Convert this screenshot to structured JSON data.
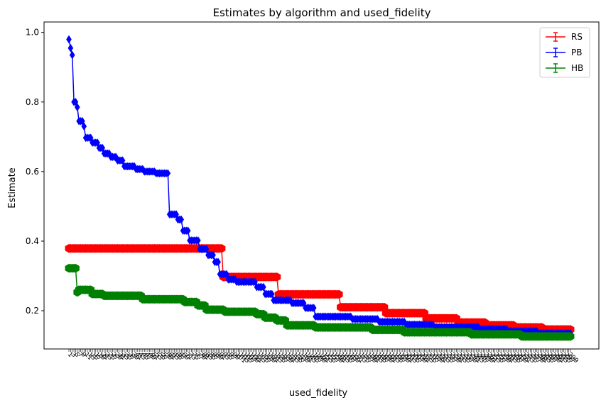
{
  "chart_data": {
    "type": "line",
    "title": "Estimates by algorithm and used_fidelity",
    "xlabel": "used_fidelity",
    "ylabel": "Estimate",
    "ylim": [
      0.09,
      1.03
    ],
    "yticks": [
      0.2,
      0.4,
      0.6,
      0.8,
      1.0
    ],
    "ytick_labels": [
      "0.2",
      "0.4",
      "0.6",
      "0.8",
      "1.0"
    ],
    "x_points": 300,
    "grid": false,
    "legend": "top-right",
    "series": [
      {
        "name": "RS",
        "color": "#ff0000",
        "marker": "hexagon",
        "steps": [
          {
            "start": 0,
            "end": 92,
            "value": 0.379
          },
          {
            "start": 92,
            "end": 125,
            "value": 0.297
          },
          {
            "start": 125,
            "end": 162,
            "value": 0.247
          },
          {
            "start": 162,
            "end": 189,
            "value": 0.21
          },
          {
            "start": 189,
            "end": 213,
            "value": 0.193
          },
          {
            "start": 213,
            "end": 232,
            "value": 0.178
          },
          {
            "start": 232,
            "end": 249,
            "value": 0.166
          },
          {
            "start": 249,
            "end": 266,
            "value": 0.158
          },
          {
            "start": 266,
            "end": 283,
            "value": 0.152
          },
          {
            "start": 283,
            "end": 300,
            "value": 0.146
          }
        ]
      },
      {
        "name": "PB",
        "color": "#0000ff",
        "marker": "diamond",
        "steps": [
          {
            "start": 0,
            "end": 1,
            "value": 0.98
          },
          {
            "start": 1,
            "end": 2,
            "value": 0.955
          },
          {
            "start": 2,
            "end": 3,
            "value": 0.935
          },
          {
            "start": 3,
            "end": 5,
            "value": 0.8
          },
          {
            "start": 5,
            "end": 6,
            "value": 0.785
          },
          {
            "start": 6,
            "end": 9,
            "value": 0.745
          },
          {
            "start": 9,
            "end": 10,
            "value": 0.73
          },
          {
            "start": 10,
            "end": 14,
            "value": 0.697
          },
          {
            "start": 14,
            "end": 18,
            "value": 0.683
          },
          {
            "start": 18,
            "end": 21,
            "value": 0.668
          },
          {
            "start": 21,
            "end": 25,
            "value": 0.652
          },
          {
            "start": 25,
            "end": 29,
            "value": 0.642
          },
          {
            "start": 29,
            "end": 33,
            "value": 0.632
          },
          {
            "start": 33,
            "end": 40,
            "value": 0.615
          },
          {
            "start": 40,
            "end": 45,
            "value": 0.607
          },
          {
            "start": 45,
            "end": 52,
            "value": 0.6
          },
          {
            "start": 52,
            "end": 60,
            "value": 0.595
          },
          {
            "start": 60,
            "end": 65,
            "value": 0.477
          },
          {
            "start": 65,
            "end": 68,
            "value": 0.462
          },
          {
            "start": 68,
            "end": 72,
            "value": 0.43
          },
          {
            "start": 72,
            "end": 78,
            "value": 0.402
          },
          {
            "start": 78,
            "end": 83,
            "value": 0.377
          },
          {
            "start": 83,
            "end": 87,
            "value": 0.36
          },
          {
            "start": 87,
            "end": 90,
            "value": 0.34
          },
          {
            "start": 90,
            "end": 95,
            "value": 0.305
          },
          {
            "start": 95,
            "end": 100,
            "value": 0.29
          },
          {
            "start": 100,
            "end": 112,
            "value": 0.283
          },
          {
            "start": 112,
            "end": 117,
            "value": 0.268
          },
          {
            "start": 117,
            "end": 122,
            "value": 0.248
          },
          {
            "start": 122,
            "end": 133,
            "value": 0.23
          },
          {
            "start": 133,
            "end": 141,
            "value": 0.222
          },
          {
            "start": 141,
            "end": 147,
            "value": 0.208
          },
          {
            "start": 147,
            "end": 169,
            "value": 0.183
          },
          {
            "start": 169,
            "end": 185,
            "value": 0.176
          },
          {
            "start": 185,
            "end": 201,
            "value": 0.168
          },
          {
            "start": 201,
            "end": 218,
            "value": 0.16
          },
          {
            "start": 218,
            "end": 245,
            "value": 0.153
          },
          {
            "start": 245,
            "end": 262,
            "value": 0.147
          },
          {
            "start": 262,
            "end": 280,
            "value": 0.141
          },
          {
            "start": 280,
            "end": 300,
            "value": 0.135
          }
        ]
      },
      {
        "name": "HB",
        "color": "#008000",
        "marker": "hexagon",
        "steps": [
          {
            "start": 0,
            "end": 5,
            "value": 0.322
          },
          {
            "start": 5,
            "end": 6,
            "value": 0.253
          },
          {
            "start": 6,
            "end": 14,
            "value": 0.26
          },
          {
            "start": 14,
            "end": 21,
            "value": 0.248
          },
          {
            "start": 21,
            "end": 44,
            "value": 0.243
          },
          {
            "start": 44,
            "end": 69,
            "value": 0.233
          },
          {
            "start": 69,
            "end": 77,
            "value": 0.225
          },
          {
            "start": 77,
            "end": 82,
            "value": 0.215
          },
          {
            "start": 82,
            "end": 93,
            "value": 0.203
          },
          {
            "start": 93,
            "end": 112,
            "value": 0.197
          },
          {
            "start": 112,
            "end": 117,
            "value": 0.19
          },
          {
            "start": 117,
            "end": 124,
            "value": 0.18
          },
          {
            "start": 124,
            "end": 130,
            "value": 0.172
          },
          {
            "start": 130,
            "end": 147,
            "value": 0.158
          },
          {
            "start": 147,
            "end": 181,
            "value": 0.152
          },
          {
            "start": 181,
            "end": 200,
            "value": 0.145
          },
          {
            "start": 200,
            "end": 240,
            "value": 0.138
          },
          {
            "start": 240,
            "end": 270,
            "value": 0.132
          },
          {
            "start": 270,
            "end": 300,
            "value": 0.126
          }
        ]
      }
    ]
  }
}
